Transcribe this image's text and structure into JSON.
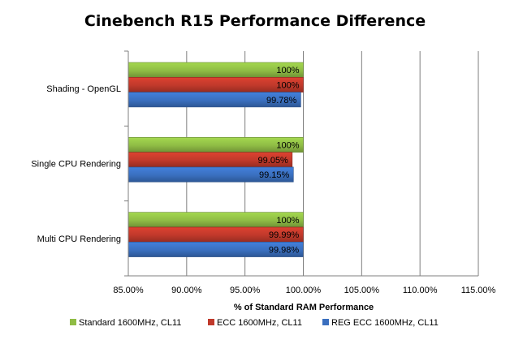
{
  "chart_data": {
    "type": "bar",
    "orientation": "horizontal",
    "title": "Cinebench R15 Performance Difference",
    "xlabel": "% of Standard RAM Performance",
    "ylabel": "",
    "xlim": [
      85,
      115
    ],
    "xticks": [
      85,
      90,
      95,
      100,
      105,
      110,
      115
    ],
    "xtick_labels": [
      "85.00%",
      "90.00%",
      "95.00%",
      "100.00%",
      "105.00%",
      "110.00%",
      "115.00%"
    ],
    "grid": true,
    "legend_position": "bottom",
    "categories": [
      "Shading - OpenGL",
      "Single CPU Rendering",
      "Multi CPU Rendering"
    ],
    "series": [
      {
        "name": "Standard 1600MHz, CL11",
        "color": "#8fbc45",
        "values": [
          100,
          100,
          100
        ],
        "labels": [
          "100%",
          "100%",
          "100%"
        ]
      },
      {
        "name": "ECC 1600MHz, CL11",
        "color": "#c0392b",
        "values": [
          100,
          99.05,
          99.99
        ],
        "labels": [
          "100%",
          "99.05%",
          "99.99%"
        ]
      },
      {
        "name": "REG ECC 1600MHz, CL11",
        "color": "#3a6fbf",
        "values": [
          99.78,
          99.15,
          99.98
        ],
        "labels": [
          "99.78%",
          "99.15%",
          "99.98%"
        ]
      }
    ]
  }
}
